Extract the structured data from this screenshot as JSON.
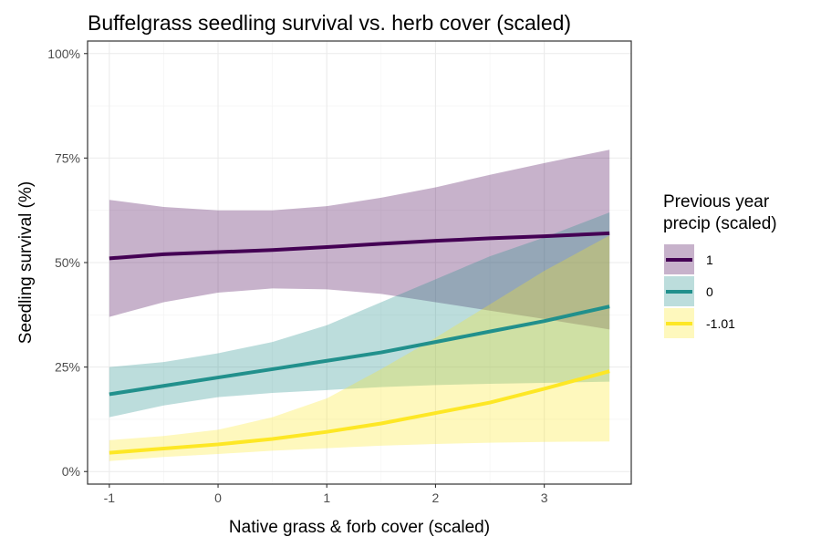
{
  "chart_data": {
    "type": "line",
    "title": "Buffelgrass seedling survival vs. herb cover (scaled)",
    "xlabel": "Native grass & forb cover (scaled)",
    "ylabel": "Seedling survival (%)",
    "xlim": [
      -1.2,
      3.8
    ],
    "ylim": [
      -0.03,
      1.03
    ],
    "x_ticks": [
      -1,
      0,
      1,
      2,
      3
    ],
    "x_tick_labels": [
      "-1",
      "0",
      "1",
      "2",
      "3"
    ],
    "y_ticks": [
      0,
      0.25,
      0.5,
      0.75,
      1.0
    ],
    "y_tick_labels": [
      "0%",
      "25%",
      "50%",
      "75%",
      "100%"
    ],
    "grid": true,
    "legend": {
      "title_line1": "Previous year",
      "title_line2": "precip (scaled)",
      "placement": "right"
    },
    "x": [
      -1,
      -0.5,
      0,
      0.5,
      1,
      1.5,
      2,
      2.5,
      3,
      3.6
    ],
    "series": [
      {
        "name": "1",
        "color": "#440154",
        "fill": "#440154",
        "values": [
          0.51,
          0.52,
          0.525,
          0.53,
          0.537,
          0.545,
          0.552,
          0.558,
          0.563,
          0.57
        ],
        "lower": [
          0.37,
          0.405,
          0.428,
          0.438,
          0.436,
          0.425,
          0.405,
          0.385,
          0.365,
          0.34
        ],
        "upper": [
          0.65,
          0.633,
          0.625,
          0.625,
          0.635,
          0.655,
          0.68,
          0.71,
          0.738,
          0.77
        ]
      },
      {
        "name": "0",
        "color": "#21908C",
        "fill": "#21908C",
        "values": [
          0.185,
          0.205,
          0.225,
          0.245,
          0.265,
          0.285,
          0.31,
          0.335,
          0.36,
          0.395
        ],
        "lower": [
          0.13,
          0.158,
          0.178,
          0.188,
          0.195,
          0.202,
          0.207,
          0.21,
          0.212,
          0.215
        ],
        "upper": [
          0.25,
          0.262,
          0.283,
          0.31,
          0.35,
          0.405,
          0.46,
          0.515,
          0.56,
          0.62
        ]
      },
      {
        "name": "-1.01",
        "color": "#FDE725",
        "fill": "#FDE725",
        "values": [
          0.045,
          0.055,
          0.065,
          0.078,
          0.095,
          0.115,
          0.14,
          0.165,
          0.198,
          0.24
        ],
        "lower": [
          0.025,
          0.035,
          0.042,
          0.05,
          0.056,
          0.062,
          0.066,
          0.069,
          0.071,
          0.072
        ],
        "upper": [
          0.075,
          0.085,
          0.1,
          0.13,
          0.175,
          0.245,
          0.32,
          0.4,
          0.48,
          0.565
        ]
      }
    ]
  }
}
